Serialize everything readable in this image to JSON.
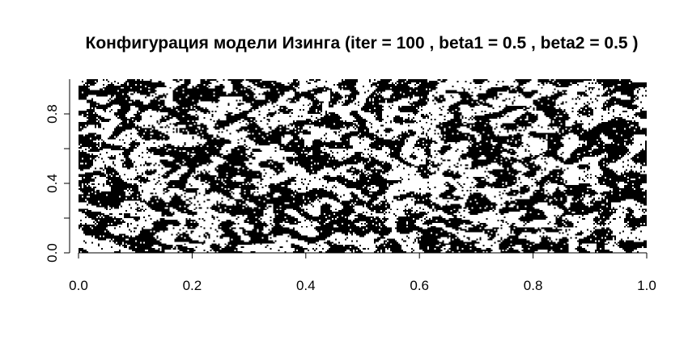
{
  "chart_data": {
    "type": "heatmap",
    "title": "Конфигурация модели Изинга (iter = 100 , beta1 = 0.5 , beta2 = 0.5 )",
    "xlabel": "",
    "ylabel": "",
    "xlim": [
      0.0,
      1.0
    ],
    "ylim": [
      0.0,
      1.0
    ],
    "x_ticks": [
      {
        "value": 0.0,
        "label": "0.0"
      },
      {
        "value": 0.2,
        "label": "0.2"
      },
      {
        "value": 0.4,
        "label": "0.4"
      },
      {
        "value": 0.6,
        "label": "0.6"
      },
      {
        "value": 0.8,
        "label": "0.8"
      },
      {
        "value": 1.0,
        "label": "1.0"
      }
    ],
    "y_ticks": [
      {
        "value": 0.0,
        "label": "0.0"
      },
      {
        "value": 0.4,
        "label": "0.4"
      },
      {
        "value": 0.8,
        "label": "0.8"
      }
    ],
    "y_minor_ticks": [
      0.2,
      0.6
    ],
    "spin_colors": {
      "up": "#000000",
      "down": "#ffffff"
    },
    "lattice": {
      "columns": 350,
      "rows": 110
    },
    "grid": false,
    "legend": "none"
  }
}
